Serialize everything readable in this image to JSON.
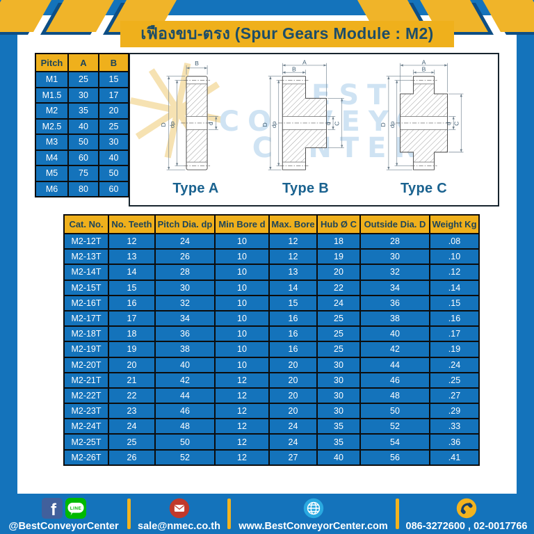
{
  "page": {
    "title": "เฟืองขบ-ตรง (Spur Gears Module : M2)"
  },
  "pitch_table": {
    "headers": [
      "Pitch",
      "A",
      "B"
    ],
    "rows": [
      [
        "M1",
        "25",
        "15"
      ],
      [
        "M1.5",
        "30",
        "17"
      ],
      [
        "M2",
        "35",
        "20"
      ],
      [
        "M2.5",
        "40",
        "25"
      ],
      [
        "M3",
        "50",
        "30"
      ],
      [
        "M4",
        "60",
        "40"
      ],
      [
        "M5",
        "75",
        "50"
      ],
      [
        "M6",
        "80",
        "60"
      ]
    ]
  },
  "drawings": {
    "type_labels": [
      "Type A",
      "Type B",
      "Type C"
    ],
    "dim_labels": {
      "A": "A",
      "B": "B",
      "C": "C",
      "D": "D",
      "dp": "dp",
      "d": "d"
    },
    "watermark_lines": [
      "BEST",
      "CONVEYOR",
      "CENTER"
    ],
    "watermark_gear_glyph": "✳"
  },
  "gear_table": {
    "headers": [
      "Cat. No.",
      "No. Teeth",
      "Pitch Dia. dp",
      "Min Bore d",
      "Max. Bore",
      "Hub Ø C",
      "Outside Dia. D",
      "Weight Kg"
    ],
    "rows": [
      [
        "M2-12T",
        "12",
        "24",
        "10",
        "12",
        "18",
        "28",
        ".08"
      ],
      [
        "M2-13T",
        "13",
        "26",
        "10",
        "12",
        "19",
        "30",
        ".10"
      ],
      [
        "M2-14T",
        "14",
        "28",
        "10",
        "13",
        "20",
        "32",
        ".12"
      ],
      [
        "M2-15T",
        "15",
        "30",
        "10",
        "14",
        "22",
        "34",
        ".14"
      ],
      [
        "M2-16T",
        "16",
        "32",
        "10",
        "15",
        "24",
        "36",
        ".15"
      ],
      [
        "M2-17T",
        "17",
        "34",
        "10",
        "16",
        "25",
        "38",
        ".16"
      ],
      [
        "M2-18T",
        "18",
        "36",
        "10",
        "16",
        "25",
        "40",
        ".17"
      ],
      [
        "M2-19T",
        "19",
        "38",
        "10",
        "16",
        "25",
        "42",
        ".19"
      ],
      [
        "M2-20T",
        "20",
        "40",
        "10",
        "20",
        "30",
        "44",
        ".24"
      ],
      [
        "M2-21T",
        "21",
        "42",
        "12",
        "20",
        "30",
        "46",
        ".25"
      ],
      [
        "M2-22T",
        "22",
        "44",
        "12",
        "20",
        "30",
        "48",
        ".27"
      ],
      [
        "M2-23T",
        "23",
        "46",
        "12",
        "20",
        "30",
        "50",
        ".29"
      ],
      [
        "M2-24T",
        "24",
        "48",
        "12",
        "24",
        "35",
        "52",
        ".33"
      ],
      [
        "M2-25T",
        "25",
        "50",
        "12",
        "24",
        "35",
        "54",
        ".36"
      ],
      [
        "M2-26T",
        "26",
        "52",
        "12",
        "27",
        "40",
        "56",
        ".41"
      ]
    ]
  },
  "footer": {
    "social_handle": "@BestConveyorCenter",
    "facebook_letter": "f",
    "line_label": "LINE",
    "email": "sale@nmec.co.th",
    "website": "www.BestConveyorCenter.com",
    "phones": "086-3272600 , 02-0017766"
  },
  "colors": {
    "frame_blue": "#1473bb",
    "cell_blue": "#1473bb",
    "accent_yellow": "#efb01c",
    "stripe_yellow": "#f0b429",
    "stripe_shadow_navy": "#0d4e85",
    "title_navy": "#1d4d68",
    "border_black": "#0c0c0c",
    "type_label_blue": "#1a628f",
    "watermark_blue": "#cfe3f3",
    "watermark_yellow": "#f6e2b2",
    "facebook_blue": "#41609c",
    "line_green": "#00b900",
    "mail_red": "#c0392b",
    "globe_blue": "#2aa9e0",
    "phone_yellow": "#f3b31e"
  }
}
